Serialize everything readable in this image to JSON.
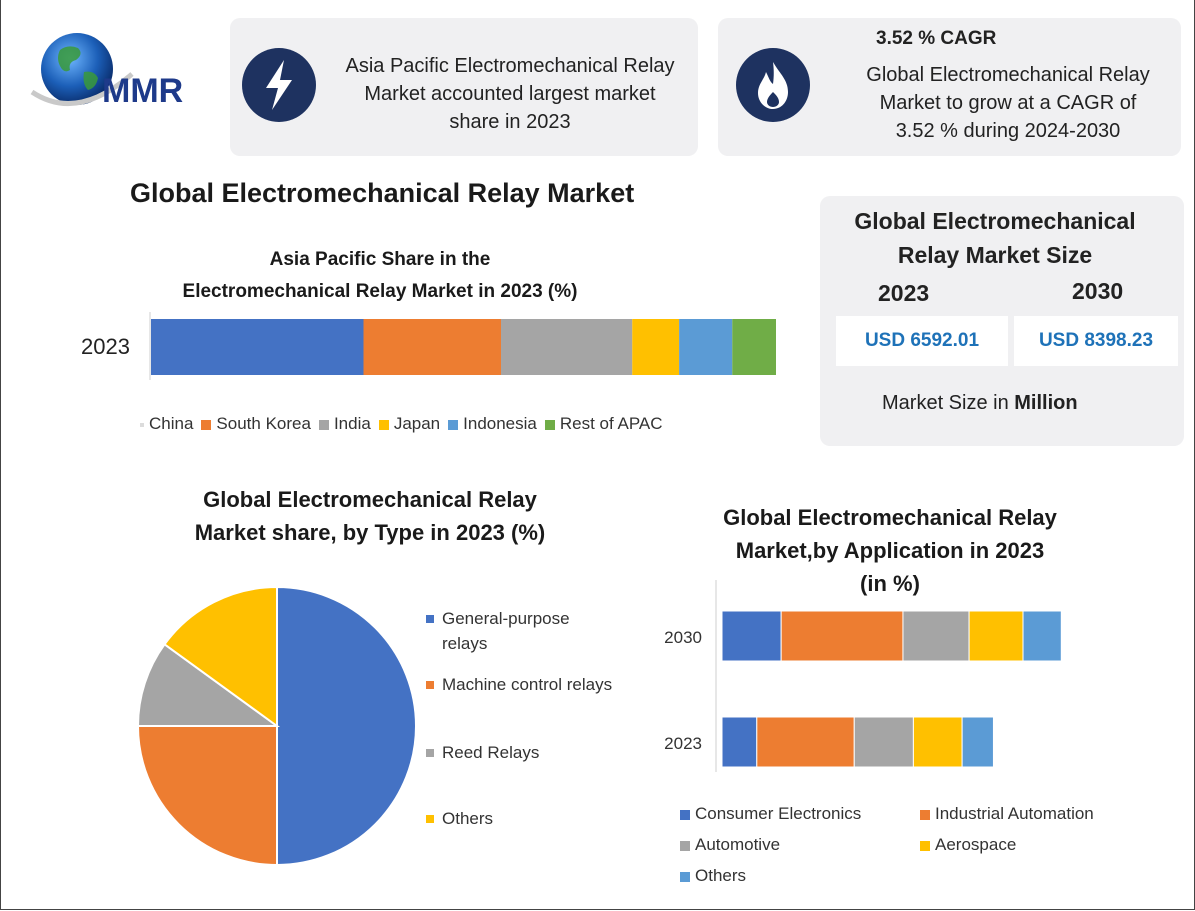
{
  "brand": {
    "logo_text": "MMR"
  },
  "info_card_1": {
    "icon": "lightning-icon",
    "lines": [
      "Asia Pacific Electromechanical Relay",
      "Market accounted largest market",
      "share in 2023"
    ]
  },
  "info_card_2": {
    "icon": "fire-icon",
    "headline": "3.52 % CAGR",
    "lines": [
      "Global Electromechanical Relay",
      "Market to grow at a CAGR of",
      "3.52 % during 2024-2030"
    ]
  },
  "main_title": "Global Electromechanical Relay Market",
  "market_size": {
    "title_lines": [
      "Global Electromechanical",
      "Relay Market Size"
    ],
    "year_a": "2023",
    "year_b": "2030",
    "value_a": "USD 6592.01",
    "value_b": "USD 8398.23",
    "unit_prefix": "Market Size in ",
    "unit_bold": "Million"
  },
  "colors": {
    "blue": "#4472c4",
    "orange": "#ed7d31",
    "gray": "#a5a5a5",
    "yellow": "#ffc000",
    "lightblue": "#5b9bd5",
    "green": "#70ad47"
  },
  "chart_data": [
    {
      "type": "bar",
      "orientation": "horizontal-stacked",
      "title_lines": [
        "Asia Pacific Share in the",
        "Electromechanical Relay Market in 2023 (%)"
      ],
      "categories": [
        "2023"
      ],
      "series": [
        {
          "name": "China",
          "values": [
            34
          ],
          "color": "#4472c4"
        },
        {
          "name": "South Korea",
          "values": [
            22
          ],
          "color": "#ed7d31"
        },
        {
          "name": "India",
          "values": [
            21
          ],
          "color": "#a5a5a5"
        },
        {
          "name": "Japan",
          "values": [
            7.5
          ],
          "color": "#ffc000"
        },
        {
          "name": "Indonesia",
          "values": [
            8.5
          ],
          "color": "#5b9bd5"
        },
        {
          "name": "Rest of APAC",
          "values": [
            7
          ],
          "color": "#70ad47"
        }
      ],
      "legend": "bottom"
    },
    {
      "type": "pie",
      "title_lines": [
        "Global Electromechanical Relay",
        "Market share, by Type in 2023  (%)"
      ],
      "slices": [
        {
          "name": "General-purpose relays",
          "label_lines": [
            "General-purpose",
            "relays"
          ],
          "value": 50,
          "color": "#4472c4"
        },
        {
          "name": "Machine control relays",
          "label_lines": [
            "Machine control relays"
          ],
          "value": 25,
          "color": "#ed7d31"
        },
        {
          "name": "Reed Relays",
          "label_lines": [
            "Reed Relays"
          ],
          "value": 10,
          "color": "#a5a5a5"
        },
        {
          "name": "Others",
          "label_lines": [
            "Others"
          ],
          "value": 15,
          "color": "#ffc000"
        }
      ],
      "legend": "right"
    },
    {
      "type": "bar",
      "orientation": "horizontal-stacked",
      "title_lines": [
        "Global Electromechanical Relay",
        "Market,by Application in 2023",
        "(in %)"
      ],
      "categories": [
        "2030",
        "2023"
      ],
      "series": [
        {
          "name": "Consumer Electronics",
          "values": [
            17,
            10
          ],
          "color": "#4472c4"
        },
        {
          "name": "Industrial Automation",
          "values": [
            35,
            28
          ],
          "color": "#ed7d31"
        },
        {
          "name": "Automotive",
          "values": [
            19,
            17
          ],
          "color": "#a5a5a5"
        },
        {
          "name": "Aerospace",
          "values": [
            15.5,
            14
          ],
          "color": "#ffc000"
        },
        {
          "name": "Others",
          "values": [
            11,
            9
          ],
          "color": "#5b9bd5"
        }
      ],
      "legend": "bottom"
    }
  ]
}
